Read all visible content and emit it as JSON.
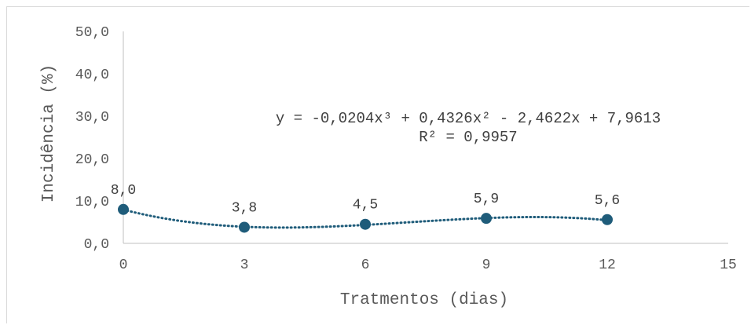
{
  "chart_data": {
    "type": "scatter",
    "xlabel": "Tratmentos (dias)",
    "ylabel": "Incidência (%)",
    "xlim": [
      0,
      15
    ],
    "ylim": [
      0,
      50
    ],
    "x_ticks": [
      "0",
      "3",
      "6",
      "9",
      "12",
      "15"
    ],
    "y_ticks": [
      "0,0",
      "10,0",
      "20,0",
      "30,0",
      "40,0",
      "50,0"
    ],
    "x": [
      0,
      3,
      6,
      9,
      12
    ],
    "values": [
      8.0,
      3.8,
      4.5,
      5.9,
      5.6
    ],
    "data_labels": [
      "8,0",
      "3,8",
      "4,5",
      "5,9",
      "5,6"
    ],
    "trendline": {
      "type": "polynomial",
      "coefficients": [
        -0.0204,
        0.4326,
        -2.4622,
        7.9613
      ],
      "equation": "y = -0,0204x³ + 0,4326x² - 2,4622x + 7,9613",
      "r_squared": "R² = 0,9957",
      "style": "dotted"
    },
    "grid": false,
    "legend": "none",
    "colors": {
      "marker": "#1f5c7a",
      "trendline": "#1f5c7a",
      "axis": "#bfbfbf"
    }
  }
}
